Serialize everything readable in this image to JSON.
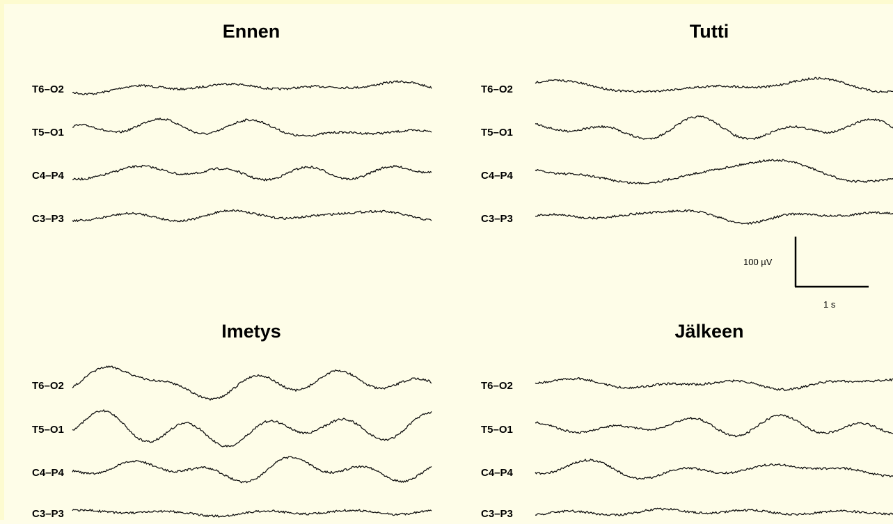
{
  "chart_data": [
    {
      "type": "line",
      "title": "Ennen",
      "channels": [
        "T6–O2",
        "T5–O1",
        "C4–P4",
        "C3–P3"
      ]
    },
    {
      "type": "line",
      "title": "Tutti",
      "channels": [
        "T6–O2",
        "T5–O1",
        "C4–P4",
        "C3–P3"
      ]
    },
    {
      "type": "line",
      "title": "Imetys",
      "channels": [
        "T6–O2",
        "T5–O1",
        "C4–P4",
        "C3–P3"
      ]
    },
    {
      "type": "line",
      "title": "Jälkeen",
      "channels": [
        "T6–O2",
        "T5–O1",
        "C4–P4",
        "C3–P3"
      ]
    }
  ],
  "scale_bar": {
    "voltage_label": "100 µV",
    "time_label": "1 s"
  }
}
